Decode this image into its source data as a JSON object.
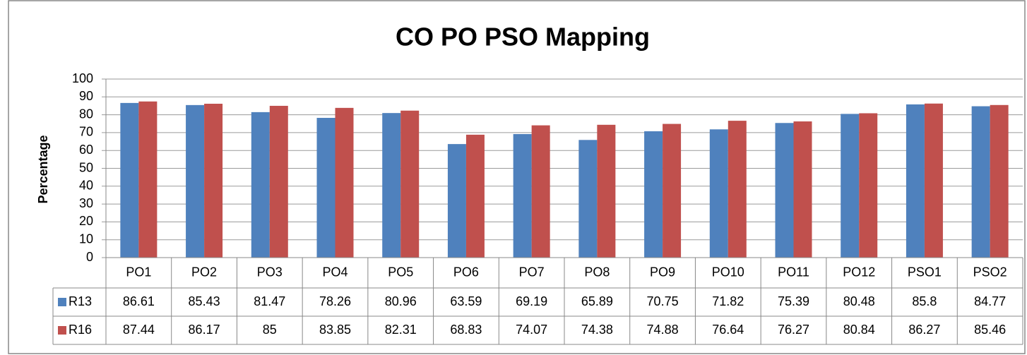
{
  "chart_data": {
    "type": "bar",
    "title": "CO PO PSO Mapping",
    "y_label": "Percentage",
    "categories": [
      "PO1",
      "PO2",
      "PO3",
      "PO4",
      "PO5",
      "PO6",
      "PO7",
      "PO8",
      "PO9",
      "PO10",
      "PO11",
      "PO12",
      "PSO1",
      "PSO2"
    ],
    "series": [
      {
        "name": "R13",
        "color": "#4f81bd",
        "values": [
          86.61,
          85.43,
          81.47,
          78.26,
          80.96,
          63.59,
          69.19,
          65.89,
          70.75,
          71.82,
          75.39,
          80.48,
          85.8,
          84.77
        ]
      },
      {
        "name": "R16",
        "color": "#c0504d",
        "values": [
          87.44,
          86.17,
          85,
          83.85,
          82.31,
          68.83,
          74.07,
          74.38,
          74.88,
          76.64,
          76.27,
          80.84,
          86.27,
          85.46
        ]
      }
    ],
    "ylim": [
      0,
      100
    ],
    "yticks": [
      0,
      10,
      20,
      30,
      40,
      50,
      60,
      70,
      80,
      90,
      100
    ],
    "grid": true,
    "data_table": true
  }
}
